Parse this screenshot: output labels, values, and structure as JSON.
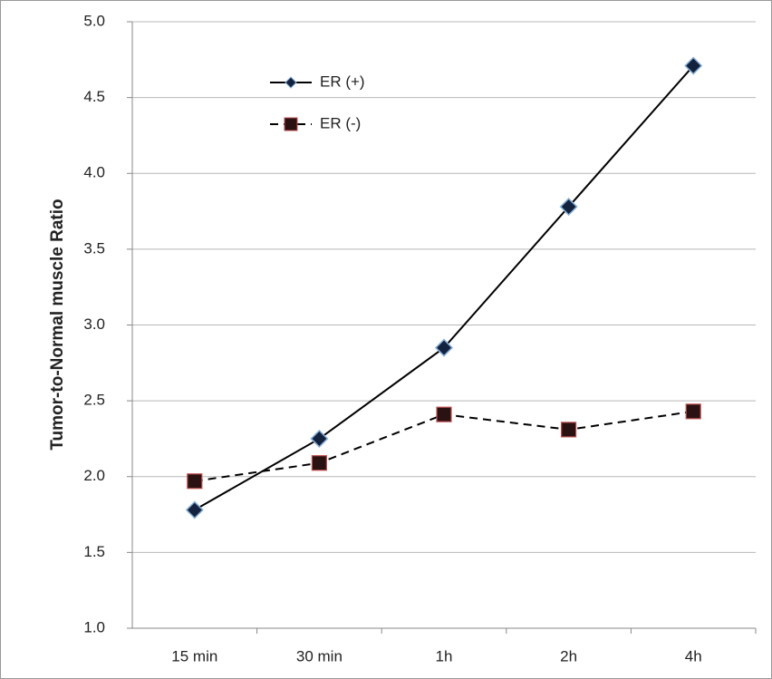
{
  "chart_data": {
    "type": "line",
    "y_label": "Tumor-to-Normal muscle Ratio",
    "categories": [
      "15 min",
      "30 min",
      "1h",
      "2h",
      "4h"
    ],
    "series": [
      {
        "name": "ER (+)",
        "color": "#000000",
        "linestyle": "solid",
        "marker": "diamond",
        "marker_color": "#13233f",
        "values": [
          1.78,
          2.25,
          2.85,
          3.78,
          4.71
        ]
      },
      {
        "name": "ER (-)",
        "color": "#000000",
        "linestyle": "dashed",
        "marker": "square",
        "marker_color": "#2a1212",
        "values": [
          1.97,
          2.09,
          2.41,
          2.31,
          2.43
        ]
      }
    ],
    "ylim": [
      1.0,
      5.0
    ],
    "yticks": [
      {
        "value": 1.0,
        "label": "1.0"
      },
      {
        "value": 1.5,
        "label": "1.5"
      },
      {
        "value": 2.0,
        "label": "2.0"
      },
      {
        "value": 2.5,
        "label": "2.5"
      },
      {
        "value": 3.0,
        "label": "3.0"
      },
      {
        "value": 3.5,
        "label": "3.5"
      },
      {
        "value": 4.0,
        "label": "4.0"
      },
      {
        "value": 4.5,
        "label": "4.5"
      },
      {
        "value": 5.0,
        "label": "5.0"
      }
    ],
    "grid": true,
    "legend": "top-left"
  }
}
